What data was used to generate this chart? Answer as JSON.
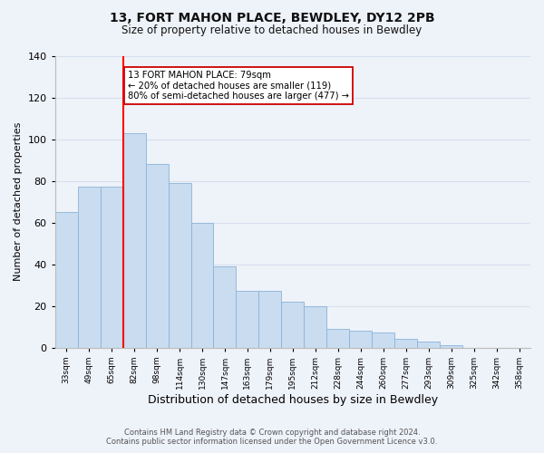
{
  "title": "13, FORT MAHON PLACE, BEWDLEY, DY12 2PB",
  "subtitle": "Size of property relative to detached houses in Bewdley",
  "xlabel": "Distribution of detached houses by size in Bewdley",
  "ylabel": "Number of detached properties",
  "bar_color": "#c9dcf0",
  "bar_edge_color": "#8ab4d8",
  "categories": [
    "33sqm",
    "49sqm",
    "65sqm",
    "82sqm",
    "98sqm",
    "114sqm",
    "130sqm",
    "147sqm",
    "163sqm",
    "179sqm",
    "195sqm",
    "212sqm",
    "228sqm",
    "244sqm",
    "260sqm",
    "277sqm",
    "293sqm",
    "309sqm",
    "325sqm",
    "342sqm",
    "358sqm"
  ],
  "values": [
    65,
    77,
    77,
    103,
    88,
    79,
    60,
    39,
    27,
    27,
    22,
    20,
    9,
    8,
    7,
    4,
    3,
    1,
    0,
    0,
    0
  ],
  "ylim": [
    0,
    140
  ],
  "yticks": [
    0,
    20,
    40,
    60,
    80,
    100,
    120,
    140
  ],
  "red_line_x": 3,
  "annotation_text": "13 FORT MAHON PLACE: 79sqm\n← 20% of detached houses are smaller (119)\n80% of semi-detached houses are larger (477) →",
  "annotation_box_color": "#ffffff",
  "annotation_box_edge": "#cc0000",
  "footer_line1": "Contains HM Land Registry data © Crown copyright and database right 2024.",
  "footer_line2": "Contains public sector information licensed under the Open Government Licence v3.0.",
  "background_color": "#eef2f9",
  "grid_color": "#d8e0ee",
  "title_fontsize": 10,
  "subtitle_fontsize": 8.5,
  "ylabel_fontsize": 8,
  "xlabel_fontsize": 9
}
